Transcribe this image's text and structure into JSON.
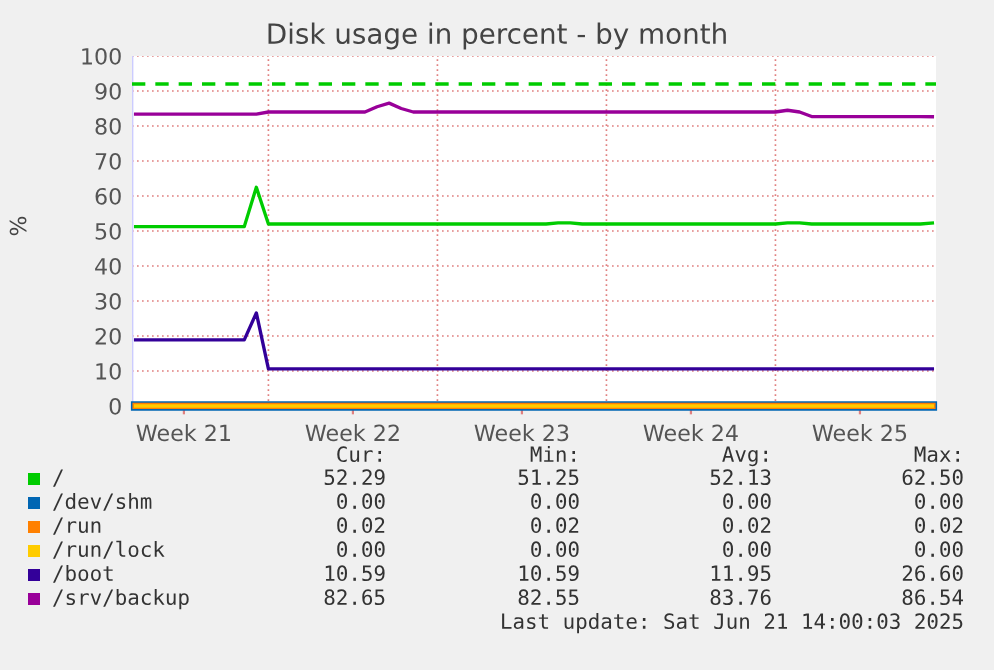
{
  "chart_data": {
    "type": "line",
    "title": "Disk usage in percent - by month",
    "ylabel": "%",
    "categories": [
      null,
      null,
      null,
      null,
      "Week 21",
      null,
      null,
      null,
      null,
      null,
      null,
      null,
      null,
      null,
      null,
      null,
      null,
      null,
      "Week 22",
      null,
      null,
      null,
      null,
      null,
      null,
      null,
      null,
      null,
      null,
      null,
      null,
      null,
      "Week 23",
      null,
      null,
      null,
      null,
      null,
      null,
      null,
      null,
      null,
      null,
      null,
      null,
      null,
      "Week 24",
      null,
      null,
      null,
      null,
      null,
      null,
      null,
      null,
      null,
      null,
      null,
      null,
      null,
      "Week 25",
      null,
      null,
      null,
      null,
      null,
      null
    ],
    "ylim": [
      0,
      100
    ],
    "yticks": [
      0,
      10,
      20,
      30,
      40,
      50,
      60,
      70,
      80,
      90,
      100
    ],
    "grid": true,
    "legend": "bottom",
    "ref_lines": [
      {
        "axis": "y",
        "value": 92,
        "color": "#00cc00",
        "line_style": "dashed"
      }
    ],
    "series": [
      {
        "name": "/",
        "color": "#00cc00",
        "values": [
          51.25,
          51.25,
          51.25,
          51.25,
          51.25,
          51.25,
          51.25,
          51.25,
          51.25,
          51.25,
          62.5,
          52,
          52,
          52,
          52,
          52,
          52,
          52,
          52,
          52,
          52,
          52,
          52,
          52,
          52,
          52,
          52,
          52,
          52,
          52,
          52,
          52,
          52,
          52,
          52,
          52.3,
          52.3,
          52,
          52,
          52,
          52,
          52,
          52,
          52,
          52,
          52,
          52,
          52,
          52,
          52,
          52,
          52,
          52,
          52,
          52.3,
          52.3,
          52,
          52,
          52,
          52,
          52,
          52,
          52,
          52,
          52,
          52,
          52.29
        ]
      },
      {
        "name": "/dev/shm",
        "color": "#0066b3",
        "values": [
          0,
          0,
          0,
          0,
          0,
          0,
          0,
          0,
          0,
          0,
          0,
          0,
          0,
          0,
          0,
          0,
          0,
          0,
          0,
          0,
          0,
          0,
          0,
          0,
          0,
          0,
          0,
          0,
          0,
          0,
          0,
          0,
          0,
          0,
          0,
          0,
          0,
          0,
          0,
          0,
          0,
          0,
          0,
          0,
          0,
          0,
          0,
          0,
          0,
          0,
          0,
          0,
          0,
          0,
          0,
          0,
          0,
          0,
          0,
          0,
          0,
          0,
          0,
          0,
          0,
          0,
          0
        ]
      },
      {
        "name": "/run",
        "color": "#ff8000",
        "values": [
          0.02,
          0.02,
          0.02,
          0.02,
          0.02,
          0.02,
          0.02,
          0.02,
          0.02,
          0.02,
          0.02,
          0.02,
          0.02,
          0.02,
          0.02,
          0.02,
          0.02,
          0.02,
          0.02,
          0.02,
          0.02,
          0.02,
          0.02,
          0.02,
          0.02,
          0.02,
          0.02,
          0.02,
          0.02,
          0.02,
          0.02,
          0.02,
          0.02,
          0.02,
          0.02,
          0.02,
          0.02,
          0.02,
          0.02,
          0.02,
          0.02,
          0.02,
          0.02,
          0.02,
          0.02,
          0.02,
          0.02,
          0.02,
          0.02,
          0.02,
          0.02,
          0.02,
          0.02,
          0.02,
          0.02,
          0.02,
          0.02,
          0.02,
          0.02,
          0.02,
          0.02,
          0.02,
          0.02,
          0.02,
          0.02,
          0.02,
          0.02
        ]
      },
      {
        "name": "/run/lock",
        "color": "#ffcc00",
        "values": [
          0,
          0,
          0,
          0,
          0,
          0,
          0,
          0,
          0,
          0,
          0,
          0,
          0,
          0,
          0,
          0,
          0,
          0,
          0,
          0,
          0,
          0,
          0,
          0,
          0,
          0,
          0,
          0,
          0,
          0,
          0,
          0,
          0,
          0,
          0,
          0,
          0,
          0,
          0,
          0,
          0,
          0,
          0,
          0,
          0,
          0,
          0,
          0,
          0,
          0,
          0,
          0,
          0,
          0,
          0,
          0,
          0,
          0,
          0,
          0,
          0,
          0,
          0,
          0,
          0,
          0,
          0
        ]
      },
      {
        "name": "/boot",
        "color": "#330099",
        "values": [
          18.9,
          18.9,
          18.9,
          18.9,
          18.9,
          18.9,
          18.9,
          18.9,
          18.9,
          18.9,
          26.6,
          10.59,
          10.59,
          10.59,
          10.59,
          10.59,
          10.59,
          10.59,
          10.59,
          10.59,
          10.59,
          10.59,
          10.59,
          10.59,
          10.59,
          10.59,
          10.59,
          10.59,
          10.59,
          10.59,
          10.59,
          10.59,
          10.59,
          10.59,
          10.59,
          10.59,
          10.59,
          10.59,
          10.59,
          10.59,
          10.59,
          10.59,
          10.59,
          10.59,
          10.59,
          10.59,
          10.59,
          10.59,
          10.59,
          10.59,
          10.59,
          10.59,
          10.59,
          10.59,
          10.59,
          10.59,
          10.59,
          10.59,
          10.59,
          10.59,
          10.59,
          10.59,
          10.59,
          10.59,
          10.59,
          10.59,
          10.59
        ]
      },
      {
        "name": "/srv/backup",
        "color": "#990099",
        "values": [
          83.4,
          83.4,
          83.4,
          83.4,
          83.4,
          83.4,
          83.4,
          83.4,
          83.4,
          83.4,
          83.4,
          84,
          84,
          84,
          84,
          84,
          84,
          84,
          84,
          84,
          85.5,
          86.54,
          85,
          84,
          84,
          84,
          84,
          84,
          84,
          84,
          84,
          84,
          84,
          84,
          84,
          84,
          84,
          84,
          84,
          84,
          84,
          84,
          84,
          84,
          84,
          84,
          84,
          84,
          84,
          84,
          84,
          84,
          84,
          84,
          84.5,
          84,
          82.7,
          82.7,
          82.7,
          82.7,
          82.7,
          82.7,
          82.7,
          82.7,
          82.7,
          82.7,
          82.65
        ]
      }
    ],
    "annotations": [
      "Cur:",
      "Min:",
      "Avg:",
      "Max:",
      "52.29",
      "51.25",
      "52.13",
      "62.50",
      "0.00",
      "0.00",
      "0.00",
      "0.00",
      "0.02",
      "0.02",
      "0.02",
      "0.02",
      "0.00",
      "0.00",
      "0.00",
      "0.00",
      "10.59",
      "10.59",
      "11.95",
      "26.60",
      "82.65",
      "82.55",
      "83.76",
      "86.54",
      "Last update: Sat Jun 21 14:00:03 2025"
    ]
  }
}
